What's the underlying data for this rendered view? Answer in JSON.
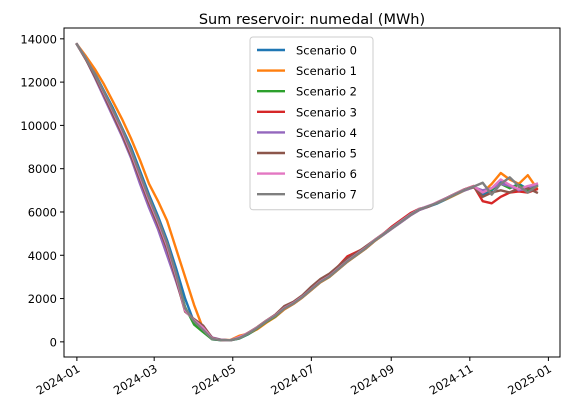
{
  "chart_data": {
    "type": "line",
    "title": "Sum reservoir: numedal (MWh)",
    "xlabel": "",
    "ylabel": "",
    "x_ticks": [
      "2024-01",
      "2024-03",
      "2024-05",
      "2024-07",
      "2024-09",
      "2024-11",
      "2025-01"
    ],
    "y_ticks": [
      0,
      2000,
      4000,
      6000,
      8000,
      10000,
      12000,
      14000
    ],
    "xlim": [
      "2023-12-22",
      "2025-01-10"
    ],
    "ylim": [
      -700,
      14500
    ],
    "legend_location": "upper center",
    "x": [
      "2024-01-01",
      "2024-01-08",
      "2024-01-15",
      "2024-01-22",
      "2024-01-29",
      "2024-02-05",
      "2024-02-12",
      "2024-02-19",
      "2024-02-26",
      "2024-03-04",
      "2024-03-11",
      "2024-03-18",
      "2024-03-25",
      "2024-04-01",
      "2024-04-08",
      "2024-04-15",
      "2024-04-22",
      "2024-04-29",
      "2024-05-06",
      "2024-05-13",
      "2024-05-20",
      "2024-05-27",
      "2024-06-03",
      "2024-06-10",
      "2024-06-17",
      "2024-06-24",
      "2024-07-01",
      "2024-07-08",
      "2024-07-15",
      "2024-07-22",
      "2024-07-29",
      "2024-08-05",
      "2024-08-12",
      "2024-08-19",
      "2024-08-26",
      "2024-09-02",
      "2024-09-09",
      "2024-09-16",
      "2024-09-23",
      "2024-09-30",
      "2024-10-07",
      "2024-10-14",
      "2024-10-21",
      "2024-10-28",
      "2024-11-04",
      "2024-11-11",
      "2024-11-18",
      "2024-11-25",
      "2024-12-02",
      "2024-12-09",
      "2024-12-16",
      "2024-12-23"
    ],
    "series": [
      {
        "name": "Scenario 0",
        "color": "#1f77b4",
        "values": [
          13750,
          13100,
          12400,
          11600,
          10800,
          9900,
          9000,
          7900,
          6800,
          5800,
          4700,
          3400,
          2000,
          900,
          500,
          120,
          80,
          70,
          150,
          350,
          600,
          900,
          1150,
          1500,
          1750,
          2050,
          2400,
          2750,
          3000,
          3350,
          3700,
          4000,
          4300,
          4650,
          4950,
          5250,
          5550,
          5850,
          6100,
          6250,
          6400,
          6600,
          6800,
          7000,
          7150,
          6800,
          7000,
          7400,
          7100,
          7300,
          7050,
          7250
        ]
      },
      {
        "name": "Scenario 1",
        "color": "#ff7f0e",
        "values": [
          13750,
          13200,
          12600,
          11900,
          11100,
          10300,
          9400,
          8400,
          7300,
          6500,
          5600,
          4300,
          3000,
          1700,
          600,
          150,
          100,
          80,
          280,
          380,
          580,
          880,
          1150,
          1500,
          1750,
          2050,
          2400,
          2750,
          3000,
          3350,
          3700,
          4000,
          4300,
          4650,
          4950,
          5250,
          5550,
          5850,
          6100,
          6250,
          6450,
          6600,
          6800,
          7000,
          7150,
          6900,
          7300,
          7800,
          7500,
          7300,
          7700,
          7100
        ]
      },
      {
        "name": "Scenario 2",
        "color": "#2ca02c",
        "values": [
          13750,
          13050,
          12300,
          11500,
          10700,
          9800,
          8800,
          7700,
          6600,
          5600,
          4500,
          3100,
          1600,
          800,
          450,
          120,
          80,
          70,
          160,
          360,
          620,
          920,
          1180,
          1550,
          1780,
          2080,
          2430,
          2780,
          3020,
          3380,
          3730,
          4020,
          4330,
          4680,
          4980,
          5280,
          5580,
          5880,
          6120,
          6270,
          6420,
          6620,
          6820,
          7020,
          7170,
          6900,
          7050,
          7300,
          7100,
          7250,
          7000,
          7200
        ]
      },
      {
        "name": "Scenario 3",
        "color": "#d62728",
        "values": [
          13750,
          13050,
          12300,
          11500,
          10600,
          9700,
          8700,
          7600,
          6500,
          5500,
          4400,
          3000,
          1500,
          1000,
          600,
          150,
          90,
          70,
          180,
          420,
          650,
          950,
          1250,
          1600,
          1800,
          2100,
          2450,
          2800,
          3050,
          3500,
          3950,
          4150,
          4350,
          4700,
          5000,
          5350,
          5650,
          5950,
          6150,
          6250,
          6450,
          6650,
          6850,
          7050,
          7200,
          6500,
          6400,
          6700,
          6900,
          6950,
          6900,
          7050
        ]
      },
      {
        "name": "Scenario 4",
        "color": "#9467bd",
        "values": [
          13750,
          13050,
          12200,
          11300,
          10400,
          9500,
          8500,
          7300,
          6200,
          5200,
          4000,
          2800,
          1500,
          1000,
          700,
          200,
          100,
          70,
          200,
          400,
          650,
          950,
          1250,
          1550,
          1800,
          2100,
          2500,
          2850,
          3100,
          3450,
          3800,
          4050,
          4350,
          4700,
          4950,
          5250,
          5550,
          5850,
          6100,
          6250,
          6450,
          6650,
          6850,
          7000,
          7150,
          7000,
          7100,
          7300,
          7200,
          7000,
          7100,
          7300
        ]
      },
      {
        "name": "Scenario 5",
        "color": "#8c564b",
        "values": [
          13750,
          13050,
          12250,
          11400,
          10500,
          9600,
          8600,
          7500,
          6400,
          5400,
          4300,
          2900,
          1400,
          1050,
          750,
          180,
          90,
          70,
          200,
          420,
          680,
          980,
          1250,
          1650,
          1850,
          2150,
          2550,
          2900,
          3150,
          3500,
          3850,
          4100,
          4400,
          4700,
          5000,
          5300,
          5600,
          5900,
          6150,
          6250,
          6450,
          6650,
          6850,
          7050,
          7150,
          6700,
          6900,
          7000,
          6900,
          7100,
          7100,
          6900
        ]
      },
      {
        "name": "Scenario 6",
        "color": "#e377c2",
        "values": [
          13750,
          13100,
          12350,
          11500,
          10650,
          9750,
          8750,
          7650,
          6550,
          5550,
          4450,
          3050,
          1450,
          1000,
          650,
          150,
          90,
          70,
          220,
          400,
          660,
          960,
          1220,
          1560,
          1790,
          2090,
          2440,
          2790,
          3040,
          3390,
          3740,
          4040,
          4340,
          4690,
          4990,
          5290,
          5590,
          5890,
          6140,
          6290,
          6440,
          6640,
          6840,
          7040,
          7190,
          6900,
          7100,
          7500,
          7250,
          7050,
          7200,
          7300
        ]
      },
      {
        "name": "Scenario 7",
        "color": "#7f7f7f",
        "values": [
          13750,
          13100,
          12350,
          11550,
          10700,
          9850,
          8850,
          7750,
          6650,
          5650,
          4550,
          3150,
          1550,
          950,
          550,
          130,
          90,
          70,
          170,
          380,
          640,
          940,
          1200,
          1540,
          1770,
          2070,
          2420,
          2770,
          3020,
          3370,
          3720,
          4020,
          4320,
          4670,
          4970,
          5270,
          5570,
          5870,
          6120,
          6270,
          6420,
          6620,
          6820,
          7020,
          7170,
          7350,
          6800,
          7300,
          7600,
          7200,
          6900,
          7200
        ]
      }
    ]
  }
}
